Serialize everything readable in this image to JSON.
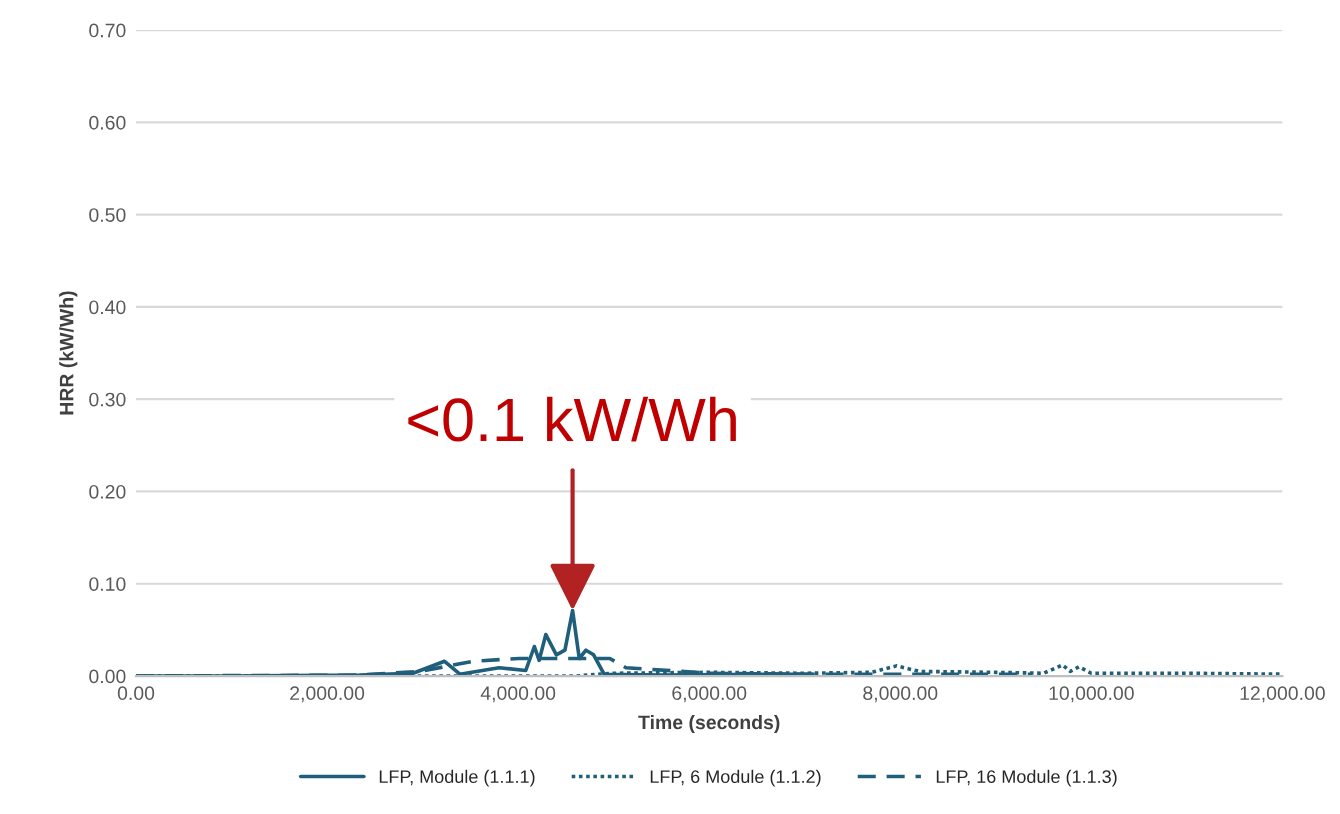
{
  "chart_data": {
    "type": "line",
    "xlabel": "Time (seconds)",
    "ylabel": "HRR (kW/Wh)",
    "xlim": [
      0,
      12000
    ],
    "ylim": [
      0,
      0.7
    ],
    "xticks": [
      {
        "value": 0,
        "label": "0.00"
      },
      {
        "value": 2000,
        "label": "2,000.00"
      },
      {
        "value": 4000,
        "label": "4,000.00"
      },
      {
        "value": 6000,
        "label": "6,000.00"
      },
      {
        "value": 8000,
        "label": "8,000.00"
      },
      {
        "value": 10000,
        "label": "10,000.00"
      },
      {
        "value": 12000,
        "label": "12,000.00"
      }
    ],
    "yticks": [
      {
        "value": 0,
        "label": "0.00"
      },
      {
        "value": 0.1,
        "label": "0.10"
      },
      {
        "value": 0.2,
        "label": "0.20"
      },
      {
        "value": 0.3,
        "label": "0.30"
      },
      {
        "value": 0.4,
        "label": "0.40"
      },
      {
        "value": 0.5,
        "label": "0.50"
      },
      {
        "value": 0.6,
        "label": "0.60"
      },
      {
        "value": 0.7,
        "label": "0.70"
      }
    ],
    "grid": "y",
    "legend": "bottom",
    "marker": "none",
    "series": [
      {
        "name": "LFP, Module (1.1.1)",
        "color": "#1f5f7c",
        "line_style": "solid",
        "x": [
          0,
          1000,
          2340,
          2900,
          3230,
          3390,
          3800,
          4080,
          4170,
          4220,
          4290,
          4400,
          4490,
          4570,
          4640,
          4710,
          4790,
          4900,
          5500,
          6500,
          7080
        ],
        "values": [
          0,
          0,
          0.001,
          0.003,
          0.016,
          0.002,
          0.009,
          0.006,
          0.032,
          0.017,
          0.045,
          0.023,
          0.028,
          0.071,
          0.019,
          0.028,
          0.023,
          0.002,
          0.001,
          0.002,
          0.002
        ]
      },
      {
        "name": "LFP, 6 Module (1.1.2)",
        "color": "#1f5f7c",
        "line_style": "dotted",
        "x": [
          0,
          4600,
          5000,
          6000,
          7000,
          7700,
          7960,
          8200,
          9000,
          9500,
          9700,
          9780,
          9870,
          10000,
          11000,
          12000
        ],
        "values": [
          0,
          0,
          0.003,
          0.004,
          0.003,
          0.004,
          0.011,
          0.005,
          0.004,
          0.003,
          0.012,
          0.005,
          0.01,
          0.003,
          0.003,
          0.002
        ]
      },
      {
        "name": "LFP, 16 Module (1.1.3)",
        "color": "#1f5f7c",
        "line_style": "dashed",
        "x": [
          0,
          2340,
          2970,
          3530,
          4010,
          4710,
          4960,
          5130,
          6000,
          7000,
          8000,
          9380
        ],
        "values": [
          0,
          0.001,
          0.005,
          0.016,
          0.019,
          0.019,
          0.019,
          0.009,
          0.003,
          0.002,
          0.002,
          0.002
        ]
      }
    ],
    "annotations": [
      {
        "text": "<0.1 kW/Wh",
        "x": 4570,
        "y": 0.071
      }
    ]
  }
}
